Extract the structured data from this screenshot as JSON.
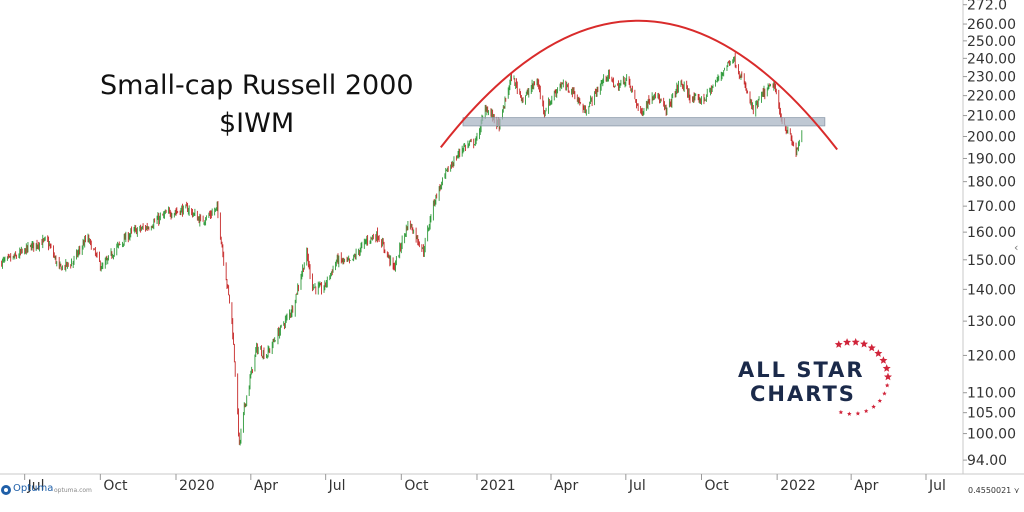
{
  "annotation": {
    "title": "Small-cap Russell 2000",
    "ticker": "$IWM"
  },
  "logo": {
    "line1": "ALL STAR",
    "line2": "CHARTS"
  },
  "footer": {
    "brand": "Optuma",
    "url": "optuma.com",
    "readout": "0.4550021 ⋎"
  },
  "colors": {
    "up": "#2e9a3a",
    "down": "#c62828",
    "arc": "#d92b2b",
    "zone": "#a9b6c4",
    "logo_navy": "#1b2a4a",
    "logo_red": "#d0243a"
  },
  "chart_data": {
    "type": "candlestick",
    "y_scale": "log",
    "ylim": [
      91,
      275
    ],
    "y_ticks": [
      "272.0",
      "260.00",
      "250.00",
      "240.00",
      "230.00",
      "220.00",
      "210.00",
      "200.00",
      "190.00",
      "180.00",
      "170.00",
      "160.00",
      "150.00",
      "140.00",
      "130.00",
      "120.00",
      "110.00",
      "105.00",
      "100.00",
      "94.00"
    ],
    "x_ticks": [
      "Jul",
      "Oct",
      "2020",
      "Apr",
      "Jul",
      "Oct",
      "2021",
      "Apr",
      "Jul",
      "Oct",
      "2022",
      "Apr",
      "Jul"
    ],
    "x_tick_dates": [
      "2019-07-01",
      "2019-10-01",
      "2020-01-01",
      "2020-04-01",
      "2020-07-01",
      "2020-10-01",
      "2021-01-01",
      "2021-04-01",
      "2021-07-01",
      "2021-10-01",
      "2022-01-01",
      "2022-04-01",
      "2022-07-01"
    ],
    "xlim": [
      "2019-06-01",
      "2022-08-15"
    ],
    "price_path": [
      [
        "2019-06-01",
        149
      ],
      [
        "2019-06-20",
        151
      ],
      [
        "2019-07-10",
        155
      ],
      [
        "2019-07-28",
        157
      ],
      [
        "2019-08-12",
        147
      ],
      [
        "2019-08-28",
        149
      ],
      [
        "2019-09-15",
        158
      ],
      [
        "2019-10-03",
        147
      ],
      [
        "2019-10-20",
        154
      ],
      [
        "2019-11-08",
        160
      ],
      [
        "2019-11-28",
        162
      ],
      [
        "2019-12-20",
        167
      ],
      [
        "2020-01-15",
        169
      ],
      [
        "2020-02-01",
        164
      ],
      [
        "2020-02-20",
        169
      ],
      [
        "2020-02-28",
        150
      ],
      [
        "2020-03-09",
        130
      ],
      [
        "2020-03-18",
        97
      ],
      [
        "2020-03-24",
        106
      ],
      [
        "2020-04-08",
        122
      ],
      [
        "2020-04-20",
        120
      ],
      [
        "2020-05-08",
        128
      ],
      [
        "2020-05-22",
        134
      ],
      [
        "2020-06-08",
        152
      ],
      [
        "2020-06-15",
        141
      ],
      [
        "2020-06-28",
        140
      ],
      [
        "2020-07-15",
        150
      ],
      [
        "2020-07-31",
        149
      ],
      [
        "2020-08-20",
        157
      ],
      [
        "2020-09-02",
        159
      ],
      [
        "2020-09-22",
        147
      ],
      [
        "2020-10-10",
        164
      ],
      [
        "2020-10-28",
        153
      ],
      [
        "2020-11-10",
        172
      ],
      [
        "2020-11-25",
        184
      ],
      [
        "2020-12-15",
        195
      ],
      [
        "2020-12-31",
        198
      ],
      [
        "2021-01-12",
        214
      ],
      [
        "2021-01-28",
        205
      ],
      [
        "2021-02-12",
        230
      ],
      [
        "2021-02-26",
        218
      ],
      [
        "2021-03-15",
        228
      ],
      [
        "2021-03-24",
        212
      ],
      [
        "2021-04-12",
        226
      ],
      [
        "2021-04-28",
        222
      ],
      [
        "2021-05-12",
        212
      ],
      [
        "2021-06-08",
        231
      ],
      [
        "2021-06-20",
        224
      ],
      [
        "2021-07-02",
        229
      ],
      [
        "2021-07-19",
        211
      ],
      [
        "2021-08-05",
        222
      ],
      [
        "2021-08-19",
        212
      ],
      [
        "2021-09-05",
        227
      ],
      [
        "2021-09-20",
        218
      ],
      [
        "2021-10-04",
        218
      ],
      [
        "2021-10-20",
        228
      ],
      [
        "2021-11-08",
        241
      ],
      [
        "2021-11-26",
        221
      ],
      [
        "2021-12-03",
        212
      ],
      [
        "2021-12-15",
        221
      ],
      [
        "2021-12-28",
        226
      ],
      [
        "2022-01-05",
        210
      ],
      [
        "2022-01-14",
        202
      ],
      [
        "2022-01-24",
        193
      ],
      [
        "2022-01-31",
        200
      ]
    ],
    "support_zone": {
      "start": "2020-12-15",
      "end": "2022-02-28",
      "low": 205,
      "high": 209
    },
    "arc": {
      "start": "2020-11-18",
      "end": "2022-03-15",
      "y_start": 195,
      "y_peak": 262,
      "y_end": 194
    }
  }
}
